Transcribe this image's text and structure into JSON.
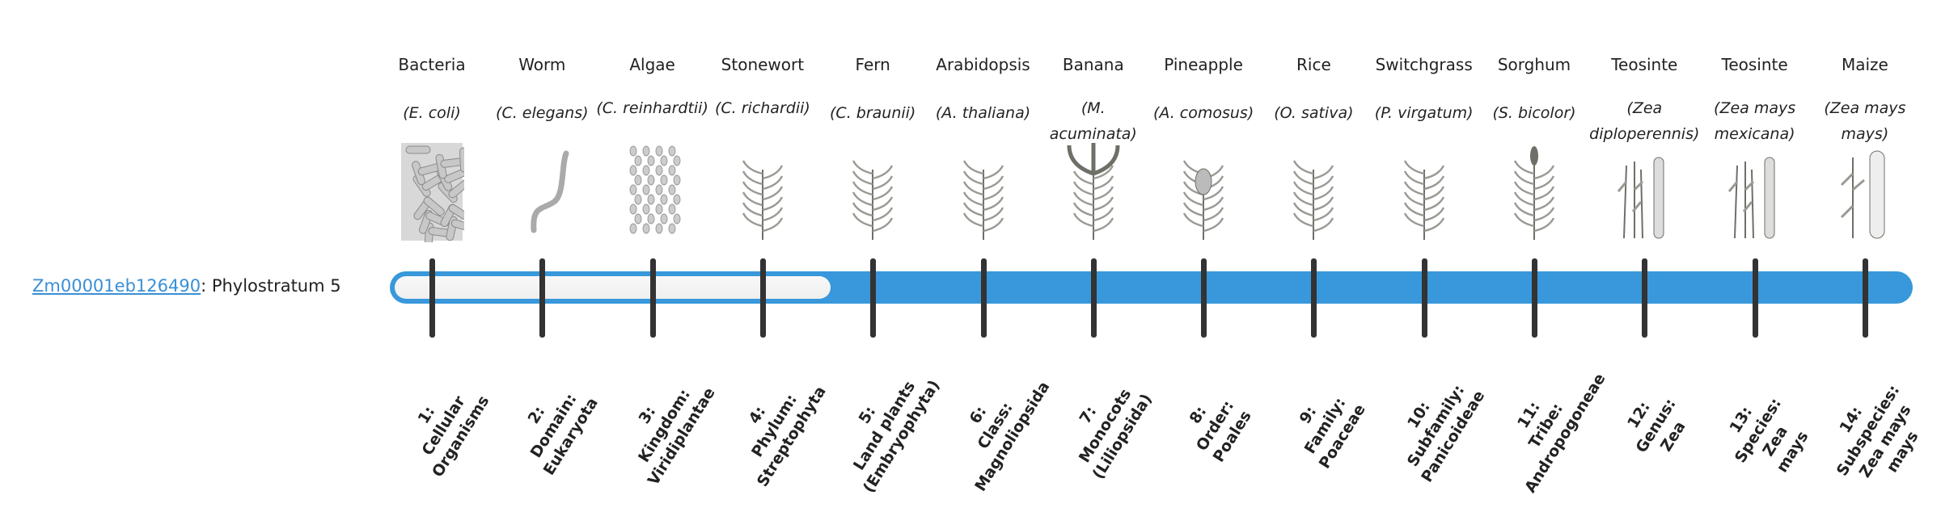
{
  "gene": {
    "id": "Zm00001eb126490",
    "suffix": ": Phylostratum 5"
  },
  "phylostratum": {
    "current": 5,
    "total": 14
  },
  "colors": {
    "bar": "#3898db",
    "track": "#f4f4f4",
    "tick": "#333333",
    "link": "#3a8fd6"
  },
  "organisms": [
    {
      "common": "Bacteria",
      "species": "(E. coli)",
      "icon": "bacteria-icon",
      "rank": [
        "1:",
        "Cellular",
        "Organisms"
      ]
    },
    {
      "common": "Worm",
      "species": "(C. elegans)",
      "icon": "worm-icon",
      "rank": [
        "2:",
        "Domain:",
        "Eukaryota"
      ]
    },
    {
      "common": "Algae",
      "species": "(C. reinhardtii)",
      "icon": "algae-icon",
      "rank": [
        "3:",
        "Kingdom:",
        "Viridiplantae"
      ]
    },
    {
      "common": "Stonewort",
      "species": "(C. richardii)",
      "icon": "stonewort-icon",
      "rank": [
        "4:",
        "Phylum:",
        "Streptophyta"
      ]
    },
    {
      "common": "Fern",
      "species": "(C. braunii)",
      "icon": "fern-icon",
      "rank": [
        "5:",
        "Land plants",
        "(Embryophyta)"
      ]
    },
    {
      "common": "Arabidopsis",
      "species": "(A. thaliana)",
      "icon": "arabidopsis-icon",
      "rank": [
        "6:",
        "Class:",
        "Magnoliopsida"
      ]
    },
    {
      "common": "Banana",
      "species": "(M. acuminata)",
      "icon": "banana-plant-icon",
      "rank": [
        "7:",
        "Monocots",
        "(Liliopsida)"
      ]
    },
    {
      "common": "Pineapple",
      "species": "(A. comosus)",
      "icon": "pineapple-icon",
      "rank": [
        "8:",
        "Order:",
        "Poales"
      ]
    },
    {
      "common": "Rice",
      "species": "(O. sativa)",
      "icon": "rice-icon",
      "rank": [
        "9:",
        "Family:",
        "Poaceae"
      ]
    },
    {
      "common": "Switchgrass",
      "species": "(P. virgatum)",
      "icon": "switchgrass-icon",
      "rank": [
        "10:",
        "Subfamily:",
        "Panicoideae"
      ]
    },
    {
      "common": "Sorghum",
      "species": "(S. bicolor)",
      "icon": "sorghum-icon",
      "rank": [
        "11:",
        "Tribe:",
        "Andropogoneae"
      ]
    },
    {
      "common": "Teosinte",
      "species": "(Zea diploperennis)",
      "icon": "teosinte-icon",
      "rank": [
        "12:",
        "Genus:",
        "Zea"
      ]
    },
    {
      "common": "Teosinte",
      "species": "(Zea mays mexicana)",
      "icon": "teosinte-mexicana-icon",
      "rank": [
        "13:",
        "Species:",
        "Zea",
        "mays"
      ]
    },
    {
      "common": "Maize",
      "species": "(Zea mays mays)",
      "icon": "maize-icon",
      "rank": [
        "14:",
        "Subspecies:",
        "Zea mays",
        "mays"
      ]
    }
  ]
}
